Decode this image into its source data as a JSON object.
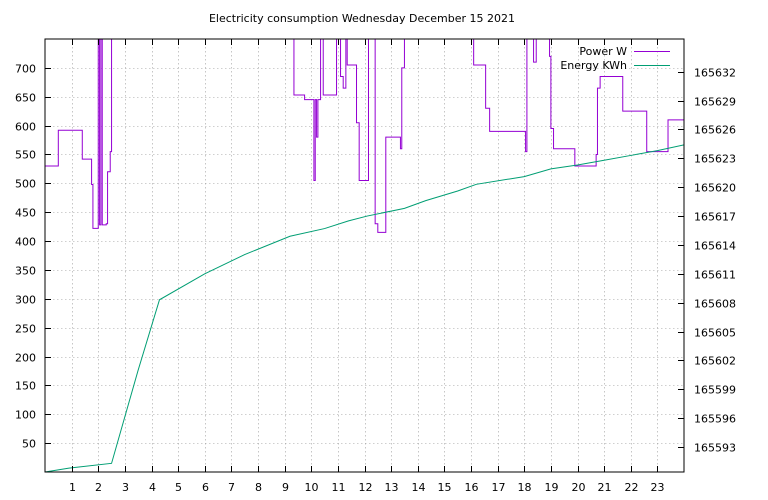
{
  "chart_data": {
    "type": "line",
    "title": "Electricity consumption Wednesday December 15 2021",
    "x": {
      "range": [
        0,
        24
      ],
      "ticks": [
        1,
        2,
        3,
        4,
        5,
        6,
        7,
        8,
        9,
        10,
        11,
        12,
        13,
        14,
        15,
        16,
        17,
        18,
        19,
        20,
        21,
        22,
        23
      ],
      "tick_labels": [
        "1",
        "2",
        "3",
        "4",
        "5",
        "6",
        "7",
        "8",
        "9",
        "10",
        "11",
        "12",
        "13",
        "14",
        "15",
        "16",
        "17",
        "18",
        "19",
        "20",
        "21",
        "22",
        "23"
      ]
    },
    "y_left": {
      "range": [
        0,
        750
      ],
      "ticks": [
        50,
        100,
        150,
        200,
        250,
        300,
        350,
        400,
        450,
        500,
        550,
        600,
        650,
        700
      ],
      "tick_labels": [
        "50",
        "100",
        "150",
        "200",
        "250",
        "300",
        "350",
        "400",
        "450",
        "500",
        "550",
        "600",
        "650",
        "700"
      ]
    },
    "y_right": {
      "range": [
        165590.4,
        165635.4
      ],
      "ticks": [
        165593,
        165596,
        165599,
        165602,
        165605,
        165608,
        165611,
        165614,
        165617,
        165620,
        165623,
        165626,
        165629,
        165632
      ],
      "tick_labels": [
        "165593",
        "165596",
        "165599",
        "165602",
        "165605",
        "165608",
        "165611",
        "165614",
        "165617",
        "165620",
        "165623",
        "165626",
        "165629",
        "165632"
      ]
    },
    "grid": true,
    "legend_position": "top-right",
    "series": [
      {
        "name": "Power W",
        "color": "#9400d3",
        "axis": "left",
        "step": true,
        "points": [
          [
            0,
            530
          ],
          [
            0.5,
            592
          ],
          [
            1.4,
            542
          ],
          [
            1.75,
            498
          ],
          [
            1.8,
            422
          ],
          [
            2.0,
            750
          ],
          [
            2.05,
            428
          ],
          [
            2.1,
            750
          ],
          [
            2.15,
            428
          ],
          [
            2.3,
            430
          ],
          [
            2.35,
            520
          ],
          [
            2.45,
            555
          ],
          [
            2.5,
            750
          ],
          [
            9.35,
            653
          ],
          [
            9.75,
            645
          ],
          [
            10.1,
            505
          ],
          [
            10.15,
            645
          ],
          [
            10.2,
            580
          ],
          [
            10.25,
            645
          ],
          [
            10.35,
            750
          ],
          [
            10.45,
            653
          ],
          [
            10.95,
            750
          ],
          [
            11.1,
            685
          ],
          [
            11.2,
            665
          ],
          [
            11.3,
            750
          ],
          [
            11.35,
            705
          ],
          [
            11.7,
            605
          ],
          [
            11.8,
            505
          ],
          [
            12.15,
            750
          ],
          [
            12.25,
            750
          ],
          [
            12.4,
            430
          ],
          [
            12.5,
            415
          ],
          [
            12.8,
            580
          ],
          [
            13.35,
            560
          ],
          [
            13.4,
            700
          ],
          [
            13.5,
            750
          ],
          [
            16.1,
            705
          ],
          [
            16.55,
            630
          ],
          [
            16.7,
            590
          ],
          [
            18.05,
            555
          ],
          [
            18.1,
            750
          ],
          [
            18.35,
            710
          ],
          [
            18.45,
            750
          ],
          [
            18.95,
            720
          ],
          [
            19.0,
            595
          ],
          [
            19.1,
            560
          ],
          [
            19.9,
            530
          ],
          [
            20.7,
            550
          ],
          [
            20.75,
            665
          ],
          [
            20.85,
            685
          ],
          [
            21.7,
            625
          ],
          [
            22.6,
            555
          ],
          [
            23.4,
            610
          ],
          [
            24,
            610
          ]
        ]
      },
      {
        "name": "Energy KWh",
        "color": "#009e73",
        "axis": "right",
        "step": false,
        "points": [
          [
            0,
            165590.4
          ],
          [
            0.9,
            165590.8
          ],
          [
            2.5,
            165591.3
          ],
          [
            3.5,
            165601
          ],
          [
            4.3,
            165608.3
          ],
          [
            6,
            165611
          ],
          [
            7.5,
            165613
          ],
          [
            9.2,
            165614.9
          ],
          [
            10.5,
            165615.7
          ],
          [
            11.4,
            165616.5
          ],
          [
            12.1,
            165617
          ],
          [
            13.5,
            165617.8
          ],
          [
            14.3,
            165618.6
          ],
          [
            15.5,
            165619.6
          ],
          [
            16.2,
            165620.3
          ],
          [
            18,
            165621.1
          ],
          [
            19,
            165621.9
          ],
          [
            20,
            165622.3
          ],
          [
            21,
            165622.8
          ],
          [
            22,
            165623.3
          ],
          [
            23,
            165623.8
          ],
          [
            24,
            165624.4
          ]
        ]
      }
    ]
  }
}
